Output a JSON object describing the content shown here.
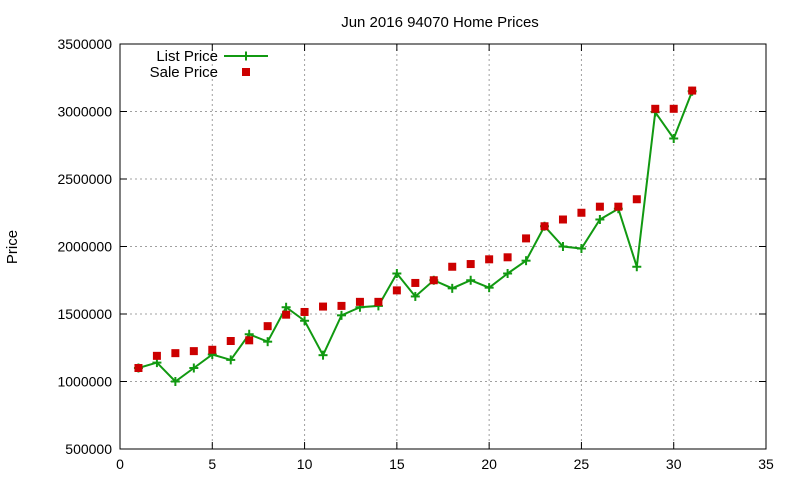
{
  "chart_data": {
    "type": "line",
    "title": "Jun 2016 94070 Home Prices",
    "xlabel": "",
    "ylabel": "Price",
    "xlim": [
      0,
      35
    ],
    "ylim": [
      500000,
      3500000
    ],
    "xticks": [
      0,
      5,
      10,
      15,
      20,
      25,
      30,
      35
    ],
    "yticks": [
      500000,
      1000000,
      1500000,
      2000000,
      2500000,
      3000000,
      3500000
    ],
    "grid": true,
    "legend_position": "top-left",
    "series": [
      {
        "name": "List Price",
        "style": "line-with-plus-markers",
        "color": "#119911",
        "x": [
          1,
          2,
          3,
          4,
          5,
          6,
          7,
          8,
          9,
          10,
          11,
          12,
          13,
          14,
          15,
          16,
          17,
          18,
          19,
          20,
          21,
          22,
          23,
          24,
          25,
          26,
          27,
          28,
          29,
          30,
          31
        ],
        "y": [
          1100000,
          1140000,
          1000000,
          1100000,
          1200000,
          1160000,
          1350000,
          1295000,
          1550000,
          1450000,
          1195000,
          1490000,
          1550000,
          1560000,
          1800000,
          1630000,
          1750000,
          1690000,
          1750000,
          1695000,
          1800000,
          1895000,
          2150000,
          2000000,
          1985000,
          2200000,
          2280000,
          1850000,
          2995000,
          2800000,
          3150000
        ]
      },
      {
        "name": "Sale Price",
        "style": "square-markers",
        "color": "#cc0000",
        "x": [
          1,
          2,
          3,
          4,
          5,
          6,
          7,
          8,
          9,
          10,
          11,
          12,
          13,
          14,
          15,
          16,
          17,
          18,
          19,
          20,
          21,
          22,
          23,
          24,
          25,
          26,
          27,
          28,
          29,
          30,
          31
        ],
        "y": [
          1100000,
          1190000,
          1210000,
          1225000,
          1235000,
          1300000,
          1305000,
          1410000,
          1495000,
          1515000,
          1555000,
          1560000,
          1590000,
          1590000,
          1675000,
          1730000,
          1750000,
          1850000,
          1870000,
          1905000,
          1920000,
          2060000,
          2150000,
          2200000,
          2250000,
          2295000,
          2295000,
          2350000,
          3020000,
          3020000,
          3155000
        ]
      }
    ]
  }
}
